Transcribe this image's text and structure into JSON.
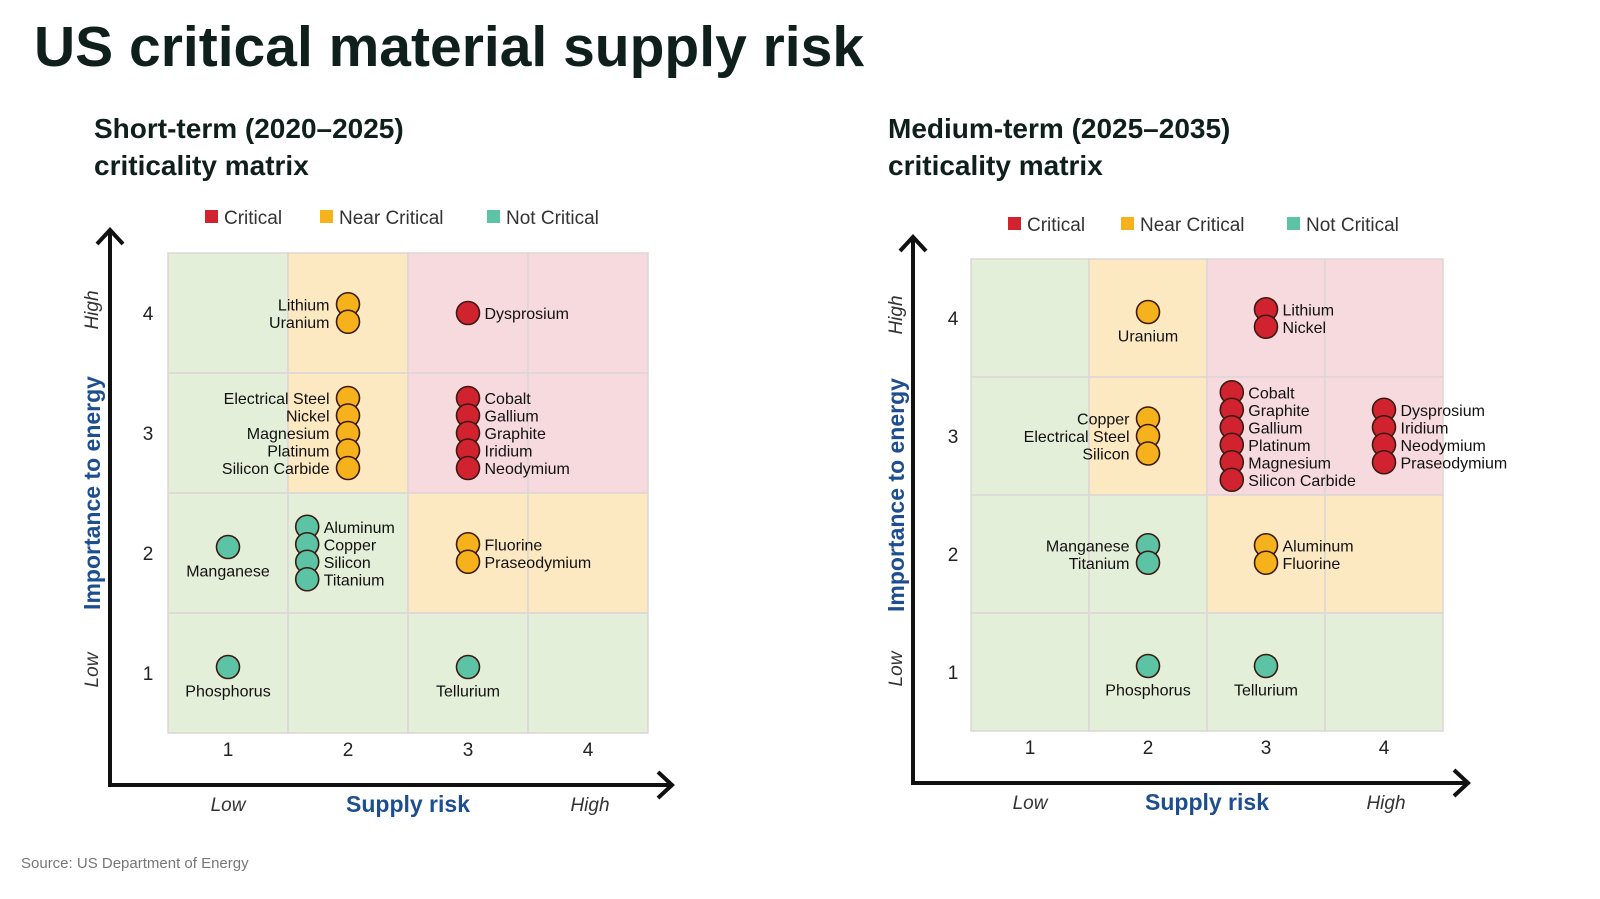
{
  "title": "US critical material supply risk",
  "source": "Source: US Department of Energy",
  "colors": {
    "Critical": "#d0232f",
    "Near Critical": "#f5b21c",
    "Not Critical": "#5cc3a5",
    "zone_Critical": "#f6dadd",
    "zone_Near Critical": "#fde9c1",
    "zone_Not Critical": "#e3efd9",
    "axis_title": "#1d4e8f"
  },
  "chart_data": [
    {
      "type": "scatter",
      "title_line1": "Short-term (2020–2025)",
      "title_line2": "criticality matrix",
      "xlabel": "Supply risk",
      "ylabel": "Importance to energy",
      "x_low": "Low",
      "x_high": "High",
      "y_low": "Low",
      "y_high": "High",
      "xticks": [
        "1",
        "2",
        "3",
        "4"
      ],
      "yticks": [
        "1",
        "2",
        "3",
        "4"
      ],
      "xlim": [
        0.5,
        4.5
      ],
      "ylim": [
        0.5,
        4.5
      ],
      "legend": [
        "Critical",
        "Near Critical",
        "Not Critical"
      ],
      "zones_by_row_top_to_bottom": [
        [
          "Not Critical",
          "Near Critical",
          "Critical",
          "Critical"
        ],
        [
          "Not Critical",
          "Near Critical",
          "Critical",
          "Critical"
        ],
        [
          "Not Critical",
          "Not Critical",
          "Near Critical",
          "Near Critical"
        ],
        [
          "Not Critical",
          "Not Critical",
          "Not Critical",
          "Not Critical"
        ]
      ],
      "groups": [
        {
          "x": 2,
          "y": 4,
          "status": "Near Critical",
          "label": "left",
          "items": [
            "Lithium",
            "Uranium"
          ]
        },
        {
          "x": 3,
          "y": 4,
          "status": "Critical",
          "label": "right",
          "items": [
            "Dysprosium"
          ]
        },
        {
          "x": 2,
          "y": 3,
          "status": "Near Critical",
          "label": "left",
          "items": [
            "Electrical Steel",
            "Nickel",
            "Magnesium",
            "Platinum",
            "Silicon Carbide"
          ]
        },
        {
          "x": 3,
          "y": 3,
          "status": "Critical",
          "label": "right",
          "items": [
            "Cobalt",
            "Gallium",
            "Graphite",
            "Iridium",
            "Neodymium"
          ]
        },
        {
          "x": 1,
          "y": 2,
          "status": "Not Critical",
          "label": "below",
          "items": [
            "Manganese"
          ]
        },
        {
          "x": 2,
          "y": 2,
          "status": "Not Critical",
          "label": "right",
          "items": [
            "Aluminum",
            "Copper",
            "Silicon",
            "Titanium"
          ]
        },
        {
          "x": 3,
          "y": 2,
          "status": "Near Critical",
          "label": "right",
          "items": [
            "Fluorine",
            "Praseodymium"
          ]
        },
        {
          "x": 1,
          "y": 1,
          "status": "Not Critical",
          "label": "below",
          "items": [
            "Phosphorus"
          ]
        },
        {
          "x": 3,
          "y": 1,
          "status": "Not Critical",
          "label": "below",
          "items": [
            "Tellurium"
          ]
        }
      ]
    },
    {
      "type": "scatter",
      "title_line1": "Medium-term (2025–2035)",
      "title_line2": "criticality matrix",
      "xlabel": "Supply risk",
      "ylabel": "Importance to energy",
      "x_low": "Low",
      "x_high": "High",
      "y_low": "Low",
      "y_high": "High",
      "xticks": [
        "1",
        "2",
        "3",
        "4"
      ],
      "yticks": [
        "1",
        "2",
        "3",
        "4"
      ],
      "xlim": [
        0.5,
        4.5
      ],
      "ylim": [
        0.5,
        4.5
      ],
      "legend": [
        "Critical",
        "Near Critical",
        "Not Critical"
      ],
      "zones_by_row_top_to_bottom": [
        [
          "Not Critical",
          "Near Critical",
          "Critical",
          "Critical"
        ],
        [
          "Not Critical",
          "Near Critical",
          "Critical",
          "Critical"
        ],
        [
          "Not Critical",
          "Not Critical",
          "Near Critical",
          "Near Critical"
        ],
        [
          "Not Critical",
          "Not Critical",
          "Not Critical",
          "Not Critical"
        ]
      ],
      "groups": [
        {
          "x": 2,
          "y": 4,
          "status": "Near Critical",
          "label": "below",
          "items": [
            "Uranium"
          ]
        },
        {
          "x": 3,
          "y": 4,
          "status": "Critical",
          "label": "right",
          "items": [
            "Lithium",
            "Nickel"
          ]
        },
        {
          "x": 2,
          "y": 3,
          "status": "Near Critical",
          "label": "left",
          "items": [
            "Copper",
            "Electrical Steel",
            "Silicon"
          ]
        },
        {
          "x": 3,
          "y": 3,
          "status": "Critical",
          "label": "right",
          "items": [
            "Cobalt",
            "Graphite",
            "Gallium",
            "Platinum",
            "Magnesium",
            "Silicon Carbide"
          ]
        },
        {
          "x": 4,
          "y": 3,
          "status": "Critical",
          "label": "right",
          "items": [
            "Dysprosium",
            "Iridium",
            "Neodymium",
            "Praseodymium"
          ]
        },
        {
          "x": 2,
          "y": 2,
          "status": "Not Critical",
          "label": "left",
          "items": [
            "Manganese",
            "Titanium"
          ]
        },
        {
          "x": 3,
          "y": 2,
          "status": "Near Critical",
          "label": "right",
          "items": [
            "Aluminum",
            "Fluorine"
          ]
        },
        {
          "x": 2,
          "y": 1,
          "status": "Not Critical",
          "label": "below",
          "items": [
            "Phosphorus"
          ]
        },
        {
          "x": 3,
          "y": 1,
          "status": "Not Critical",
          "label": "below",
          "items": [
            "Tellurium"
          ]
        }
      ]
    }
  ]
}
